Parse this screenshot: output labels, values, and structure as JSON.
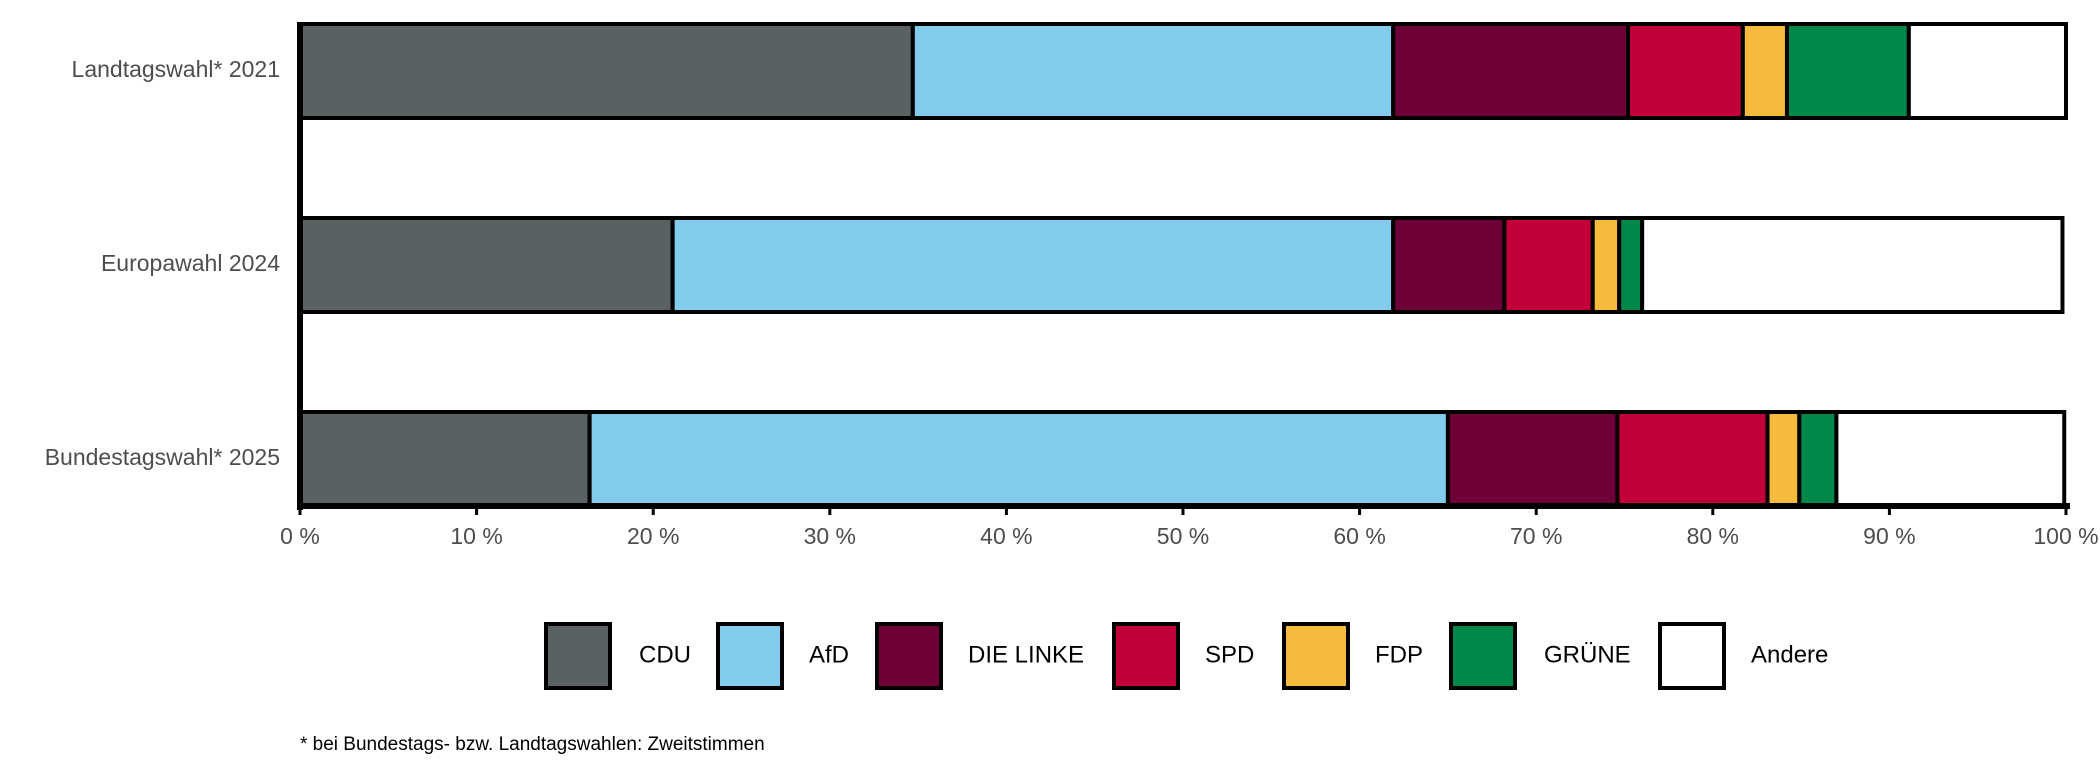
{
  "chart_data": {
    "type": "stacked-bar-horizontal",
    "categories": [
      "Landtagswahl* 2021",
      "Europawahl 2024",
      "Bundestagswahl* 2025"
    ],
    "series": [
      {
        "name": "CDU",
        "color": "#5a6163",
        "values": [
          34.7,
          21.1,
          16.4
        ]
      },
      {
        "name": "AfD",
        "color": "#82cdec",
        "values": [
          27.2,
          40.8,
          48.6
        ]
      },
      {
        "name": "DIE LINKE",
        "color": "#6d0037",
        "values": [
          13.3,
          6.3,
          9.6
        ]
      },
      {
        "name": "SPD",
        "color": "#c2003a",
        "values": [
          6.5,
          5.0,
          8.5
        ]
      },
      {
        "name": "FDP",
        "color": "#f6bb3d",
        "values": [
          2.5,
          1.5,
          1.8
        ]
      },
      {
        "name": "GRÜNE",
        "color": "#00874a",
        "values": [
          6.9,
          1.3,
          2.1
        ]
      },
      {
        "name": "Andere",
        "color": "#ffffff",
        "values": [
          8.9,
          23.8,
          12.9
        ]
      }
    ],
    "xlim": [
      0,
      100
    ],
    "xticks": [
      {
        "value": 0,
        "label": "0 %"
      },
      {
        "value": 10,
        "label": "10 %"
      },
      {
        "value": 20,
        "label": "20 %"
      },
      {
        "value": 30,
        "label": "30 %"
      },
      {
        "value": 40,
        "label": "40 %"
      },
      {
        "value": 50,
        "label": "50 %"
      },
      {
        "value": 60,
        "label": "60 %"
      },
      {
        "value": 70,
        "label": "70 %"
      },
      {
        "value": 80,
        "label": "80 %"
      },
      {
        "value": 90,
        "label": "90 %"
      },
      {
        "value": 100,
        "label": "100 %"
      }
    ],
    "legend_position": "bottom",
    "footnote": "* bei Bundestags- bzw. Landtagswahlen: Zweitstimmen"
  }
}
